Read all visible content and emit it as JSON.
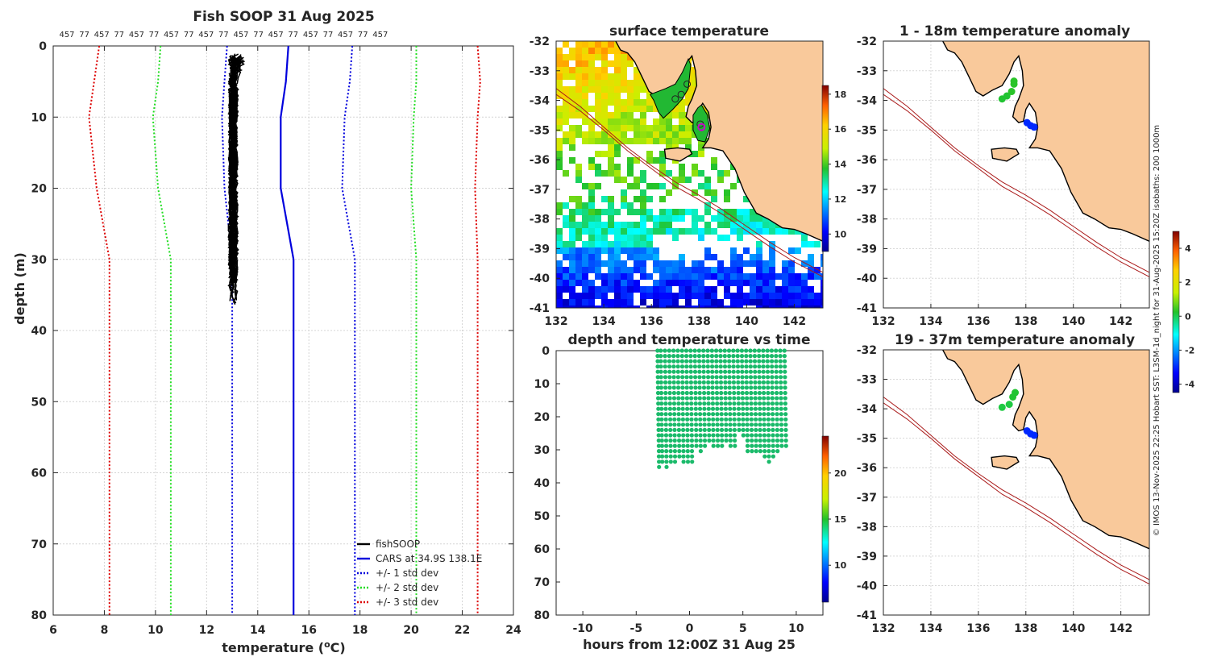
{
  "colors": {
    "cars": "#0000dd",
    "std1": "#0000dd",
    "std2": "#22dd22",
    "std3": "#dd0000",
    "land": "#f9c99b",
    "fish": "#000000",
    "sample": "#1aba6a",
    "coast": "#000000",
    "isobath": "#aa1a1a",
    "warm_anom": "#33bb33",
    "cold_anom": "#2060e0"
  },
  "profile": {
    "title": "Fish SOOP 31 Aug 2025",
    "top_counts": [
      "457",
      "77",
      "457",
      "77",
      "457",
      "77",
      "457",
      "77",
      "457",
      "77",
      "457",
      "77",
      "457",
      "77",
      "457",
      "77",
      "457",
      "77",
      "457"
    ],
    "xlabel": "temperature (",
    "xlabel_sup": "o",
    "xlabel_tail": "C)",
    "ylabel": "depth (m)",
    "xticks": [
      "6",
      "8",
      "10",
      "12",
      "14",
      "16",
      "18",
      "20",
      "22",
      "24"
    ],
    "yticks": [
      "0",
      "10",
      "20",
      "30",
      "40",
      "50",
      "60",
      "70",
      "80"
    ],
    "legend": [
      "fishSOOP",
      "CARS at 34.9S 138.1E",
      "+/- 1 std dev",
      "+/- 2 std dev",
      "+/- 3 std dev"
    ]
  },
  "sst_map": {
    "title": "surface temperature",
    "xticks": [
      "132",
      "134",
      "136",
      "138",
      "140",
      "142"
    ],
    "yticks": [
      "-32",
      "-33",
      "-34",
      "-35",
      "-36",
      "-37",
      "-38",
      "-39",
      "-40",
      "-41"
    ],
    "cbar_ticks": [
      "10",
      "12",
      "14",
      "16",
      "18"
    ]
  },
  "time_plot": {
    "title": "depth and temperature vs time",
    "xlabel": "hours from 12:00Z 31 Aug 25",
    "xticks": [
      "-10",
      "-5",
      "0",
      "5",
      "10"
    ],
    "yticks": [
      "0",
      "10",
      "20",
      "30",
      "40",
      "50",
      "60",
      "70",
      "80"
    ],
    "cbar_ticks": [
      "10",
      "15",
      "20"
    ]
  },
  "anom_top": {
    "title": "1 - 18m temperature anomaly",
    "xticks": [
      "132",
      "134",
      "136",
      "138",
      "140",
      "142"
    ],
    "yticks": [
      "-32",
      "-33",
      "-34",
      "-35",
      "-36",
      "-37",
      "-38",
      "-39",
      "-40",
      "-41"
    ]
  },
  "anom_bottom": {
    "title": "19 - 37m temperature anomaly",
    "xticks": [
      "132",
      "134",
      "136",
      "138",
      "140",
      "142"
    ],
    "yticks": [
      "-32",
      "-33",
      "-34",
      "-35",
      "-36",
      "-37",
      "-38",
      "-39",
      "-40",
      "-41"
    ]
  },
  "anom_cbar_ticks": [
    "-4",
    "-2",
    "0",
    "2",
    "4"
  ],
  "footer": "© IMOS 13-Nov-2025 22:25 Hobart SST: L3SM-1d_night for 31-Aug-2025 15:20Z isobaths: 200  1000m",
  "chart_data": [
    {
      "type": "line",
      "title": "Fish SOOP 31 Aug 2025",
      "xlabel": "temperature (oC)",
      "ylabel": "depth (m)",
      "xlim": [
        6,
        24
      ],
      "ylim": [
        80,
        0
      ],
      "grid": true,
      "legend_position": "bottom-right",
      "series": [
        {
          "name": "fishSOOP",
          "x": [
            13.1,
            13.0,
            13.0,
            13.0,
            13.0
          ],
          "y": [
            1,
            10,
            20,
            30,
            37
          ],
          "x_range_at_top": [
            12.9,
            13.6
          ]
        },
        {
          "name": "CARS at 34.9S 138.1E",
          "x": [
            15.2,
            15.1,
            14.9,
            14.9,
            15.4,
            15.4
          ],
          "y": [
            0,
            5,
            10,
            20,
            30,
            80
          ]
        },
        {
          "name": "+/- 1 std dev (low)",
          "x": [
            12.8,
            12.7,
            12.6,
            12.7,
            13.0,
            13.0
          ],
          "y": [
            0,
            5,
            10,
            20,
            30,
            80
          ]
        },
        {
          "name": "+/- 1 std dev (high)",
          "x": [
            17.7,
            17.6,
            17.4,
            17.3,
            17.8,
            17.8
          ],
          "y": [
            0,
            5,
            10,
            20,
            30,
            80
          ]
        },
        {
          "name": "+/- 2 std dev (low)",
          "x": [
            10.2,
            10.1,
            9.9,
            10.1,
            10.6,
            10.6
          ],
          "y": [
            0,
            5,
            10,
            20,
            30,
            80
          ]
        },
        {
          "name": "+/- 2 std dev (high)",
          "x": [
            20.2,
            20.2,
            20.1,
            20.0,
            20.2,
            20.2
          ],
          "y": [
            0,
            5,
            10,
            20,
            30,
            80
          ]
        },
        {
          "name": "+/- 3 std dev (low)",
          "x": [
            7.8,
            7.6,
            7.4,
            7.7,
            8.2,
            8.2
          ],
          "y": [
            0,
            5,
            10,
            20,
            30,
            80
          ]
        },
        {
          "name": "+/- 3 std dev (high)",
          "x": [
            22.6,
            22.7,
            22.6,
            22.5,
            22.6,
            22.6
          ],
          "y": [
            0,
            5,
            10,
            20,
            30,
            80
          ]
        }
      ]
    },
    {
      "type": "heatmap",
      "title": "surface temperature",
      "xlim": [
        132,
        143.2
      ],
      "ylim": [
        -41,
        -32
      ],
      "colorbar_range": [
        9,
        18.5
      ],
      "vessel_position": [
        138.1,
        -34.9
      ]
    },
    {
      "type": "scatter",
      "title": "depth and temperature vs time",
      "xlabel": "hours from 12:00Z 31 Aug 25",
      "xlim": [
        -12.5,
        12.5
      ],
      "ylim": [
        80,
        0
      ],
      "colorbar_range": [
        6,
        24
      ],
      "profiles": [
        {
          "hour": -3.0,
          "max_depth": 36
        },
        {
          "hour": -2.7,
          "max_depth": 35
        },
        {
          "hour": -2.3,
          "max_depth": 36
        },
        {
          "hour": -1.9,
          "max_depth": 34
        },
        {
          "hour": -1.5,
          "max_depth": 35
        },
        {
          "hour": -1.1,
          "max_depth": 33
        },
        {
          "hour": -0.7,
          "max_depth": 35
        },
        {
          "hour": -0.3,
          "max_depth": 34
        },
        {
          "hour": 0.1,
          "max_depth": 35
        },
        {
          "hour": 0.5,
          "max_depth": 30
        },
        {
          "hour": 0.9,
          "max_depth": 31
        },
        {
          "hour": 1.3,
          "max_depth": 30
        },
        {
          "hour": 1.7,
          "max_depth": 28
        },
        {
          "hour": 2.1,
          "max_depth": 30
        },
        {
          "hour": 2.5,
          "max_depth": 29
        },
        {
          "hour": 2.9,
          "max_depth": 30
        },
        {
          "hour": 3.3,
          "max_depth": 28
        },
        {
          "hour": 3.7,
          "max_depth": 30
        },
        {
          "hour": 4.1,
          "max_depth": 29
        },
        {
          "hour": 4.5,
          "max_depth": 25
        },
        {
          "hour": 4.9,
          "max_depth": 27
        },
        {
          "hour": 5.3,
          "max_depth": 31
        },
        {
          "hour": 5.7,
          "max_depth": 32
        },
        {
          "hour": 6.1,
          "max_depth": 31
        },
        {
          "hour": 6.5,
          "max_depth": 32
        },
        {
          "hour": 6.9,
          "max_depth": 33
        },
        {
          "hour": 7.3,
          "max_depth": 34
        },
        {
          "hour": 7.7,
          "max_depth": 33
        },
        {
          "hour": 8.1,
          "max_depth": 31
        },
        {
          "hour": 8.5,
          "max_depth": 30
        },
        {
          "hour": 8.9,
          "max_depth": 29
        }
      ]
    },
    {
      "type": "scatter",
      "title": "1 - 18m temperature anomaly",
      "xlim": [
        132,
        143.2
      ],
      "ylim": [
        -41,
        -32
      ],
      "colorbar_range": [
        -4.5,
        5
      ],
      "points": [
        {
          "lon": 137.0,
          "lat": -33.95,
          "anomaly": 0.2
        },
        {
          "lon": 137.2,
          "lat": -33.85,
          "anomaly": 0.2
        },
        {
          "lon": 137.4,
          "lat": -33.7,
          "anomaly": 0.3
        },
        {
          "lon": 137.5,
          "lat": -33.45,
          "anomaly": 0.3
        },
        {
          "lon": 137.5,
          "lat": -33.35,
          "anomaly": 0.3
        },
        {
          "lon": 138.05,
          "lat": -34.75,
          "anomaly": -3.0
        },
        {
          "lon": 138.2,
          "lat": -34.85,
          "anomaly": -3.0
        },
        {
          "lon": 138.35,
          "lat": -34.9,
          "anomaly": -3.0
        }
      ]
    },
    {
      "type": "scatter",
      "title": "19 - 37m temperature anomaly",
      "xlim": [
        132,
        143.2
      ],
      "ylim": [
        -41,
        -32
      ],
      "colorbar_range": [
        -4.5,
        5
      ],
      "points": [
        {
          "lon": 137.0,
          "lat": -33.95,
          "anomaly": 0.1
        },
        {
          "lon": 137.3,
          "lat": -33.85,
          "anomaly": 0.1
        },
        {
          "lon": 137.45,
          "lat": -33.6,
          "anomaly": 0.2
        },
        {
          "lon": 137.55,
          "lat": -33.45,
          "anomaly": 0.2
        },
        {
          "lon": 138.05,
          "lat": -34.75,
          "anomaly": -3.0
        },
        {
          "lon": 138.2,
          "lat": -34.85,
          "anomaly": -3.0
        },
        {
          "lon": 138.35,
          "lat": -34.9,
          "anomaly": -3.0
        }
      ]
    }
  ]
}
